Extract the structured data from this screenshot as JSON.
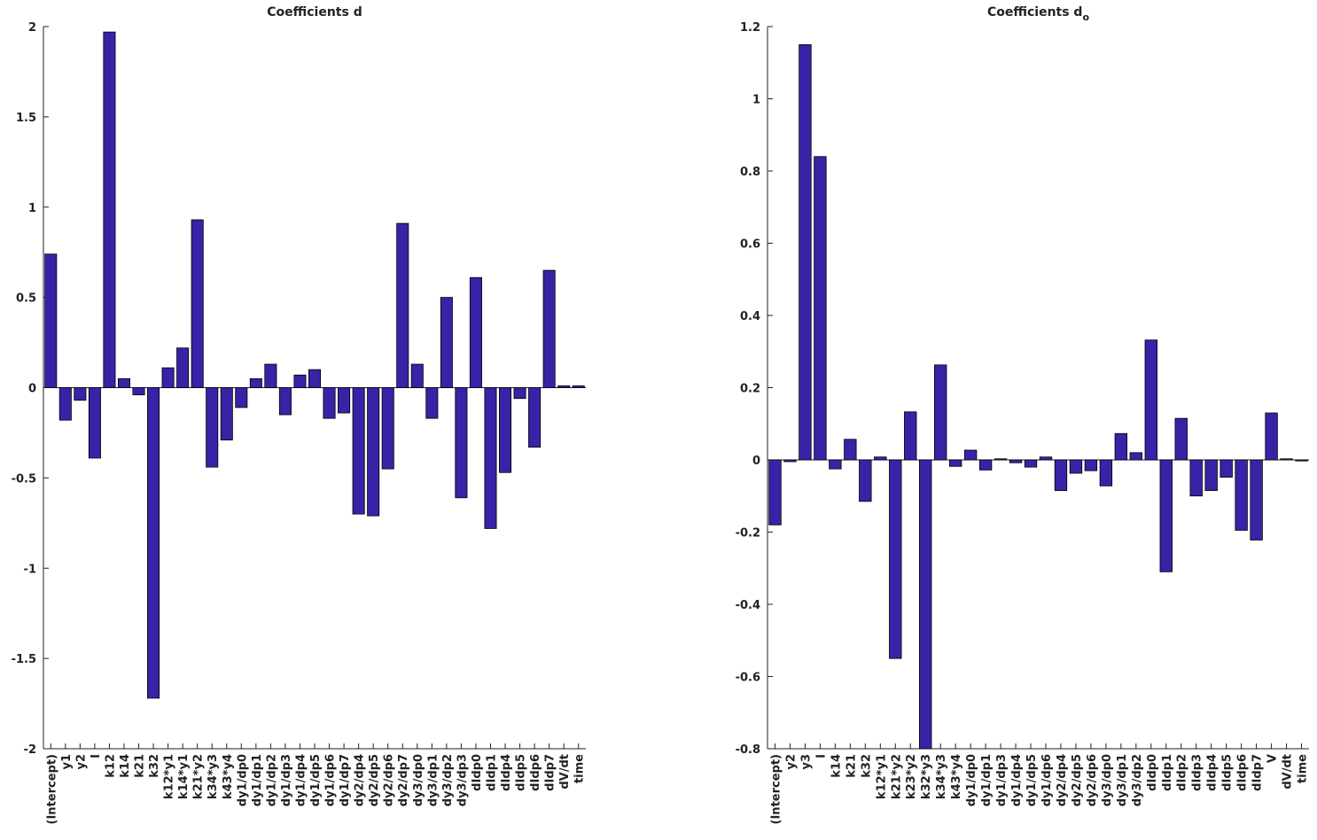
{
  "chart_data": [
    {
      "type": "bar",
      "title": "Coefficients d",
      "color": "#3a22a6",
      "categories": [
        "(Intercept)",
        "y1",
        "y2",
        "I",
        "k12",
        "k14",
        "k21",
        "k32",
        "k12*y1",
        "k14*y1",
        "k21*y2",
        "k34*y3",
        "k43*y4",
        "dy1/dp0",
        "dy1/dp1",
        "dy1/dp2",
        "dy1/dp3",
        "dy1/dp4",
        "dy1/dp5",
        "dy1/dp6",
        "dy1/dp7",
        "dy2/dp4",
        "dy2/dp5",
        "dy2/dp6",
        "dy2/dp7",
        "dy3/dp0",
        "dy3/dp1",
        "dy3/dp2",
        "dy3/dp3",
        "dIdp0",
        "dIdp1",
        "dIdp4",
        "dIdp5",
        "dIdp6",
        "dIdp7",
        "dV/dt",
        "time"
      ],
      "values": [
        0.74,
        -0.18,
        -0.07,
        -0.39,
        1.97,
        0.05,
        -0.04,
        -1.72,
        0.11,
        0.22,
        0.93,
        -0.44,
        -0.29,
        -0.11,
        0.05,
        0.13,
        -0.15,
        0.07,
        0.1,
        -0.17,
        -0.14,
        -0.7,
        -0.71,
        -0.45,
        0.91,
        0.13,
        -0.17,
        0.5,
        -0.61,
        0.61,
        -0.78,
        -0.47,
        -0.06,
        -0.33,
        0.65,
        0.01,
        0.01
      ],
      "ylim": [
        -2,
        2
      ],
      "yticks": [
        -2,
        -1.5,
        -1,
        -0.5,
        0,
        0.5,
        1,
        1.5,
        2
      ]
    },
    {
      "type": "bar",
      "title": "Coefficients d",
      "title_subscript": "o",
      "color": "#3a22a6",
      "categories": [
        "(Intercept)",
        "y2",
        "y3",
        "I",
        "k14",
        "k21",
        "k32",
        "k12*y1",
        "k21*y2",
        "k23*y2",
        "k32*y3",
        "k34*y3",
        "k43*y4",
        "dy1/dp0",
        "dy1/dp1",
        "dy1/dp3",
        "dy1/dp4",
        "dy1/dp5",
        "dy1/dp6",
        "dy2/dp4",
        "dy2/dp5",
        "dy2/dp6",
        "dy3/dp0",
        "dy3/dp1",
        "dy3/dp2",
        "dIdp0",
        "dIdp1",
        "dIdp2",
        "dIdp3",
        "dIdp4",
        "dIdp5",
        "dIdp6",
        "dIdp7",
        "V",
        "dV/dt",
        "time"
      ],
      "values": [
        -0.18,
        -0.005,
        1.15,
        0.84,
        -0.025,
        0.057,
        -0.115,
        0.008,
        -0.55,
        0.133,
        -0.8,
        0.263,
        -0.018,
        0.027,
        -0.028,
        0.003,
        -0.008,
        -0.02,
        0.008,
        -0.085,
        -0.037,
        -0.03,
        -0.072,
        0.073,
        0.02,
        0.332,
        -0.31,
        0.115,
        -0.1,
        -0.085,
        -0.048,
        -0.195,
        -0.222,
        0.13,
        0.003,
        -0.003
      ],
      "ylim": [
        -0.8,
        1.2
      ],
      "yticks": [
        -0.8,
        -0.6,
        -0.4,
        -0.2,
        0,
        0.2,
        0.4,
        0.6,
        0.8,
        1,
        1.2
      ]
    }
  ]
}
